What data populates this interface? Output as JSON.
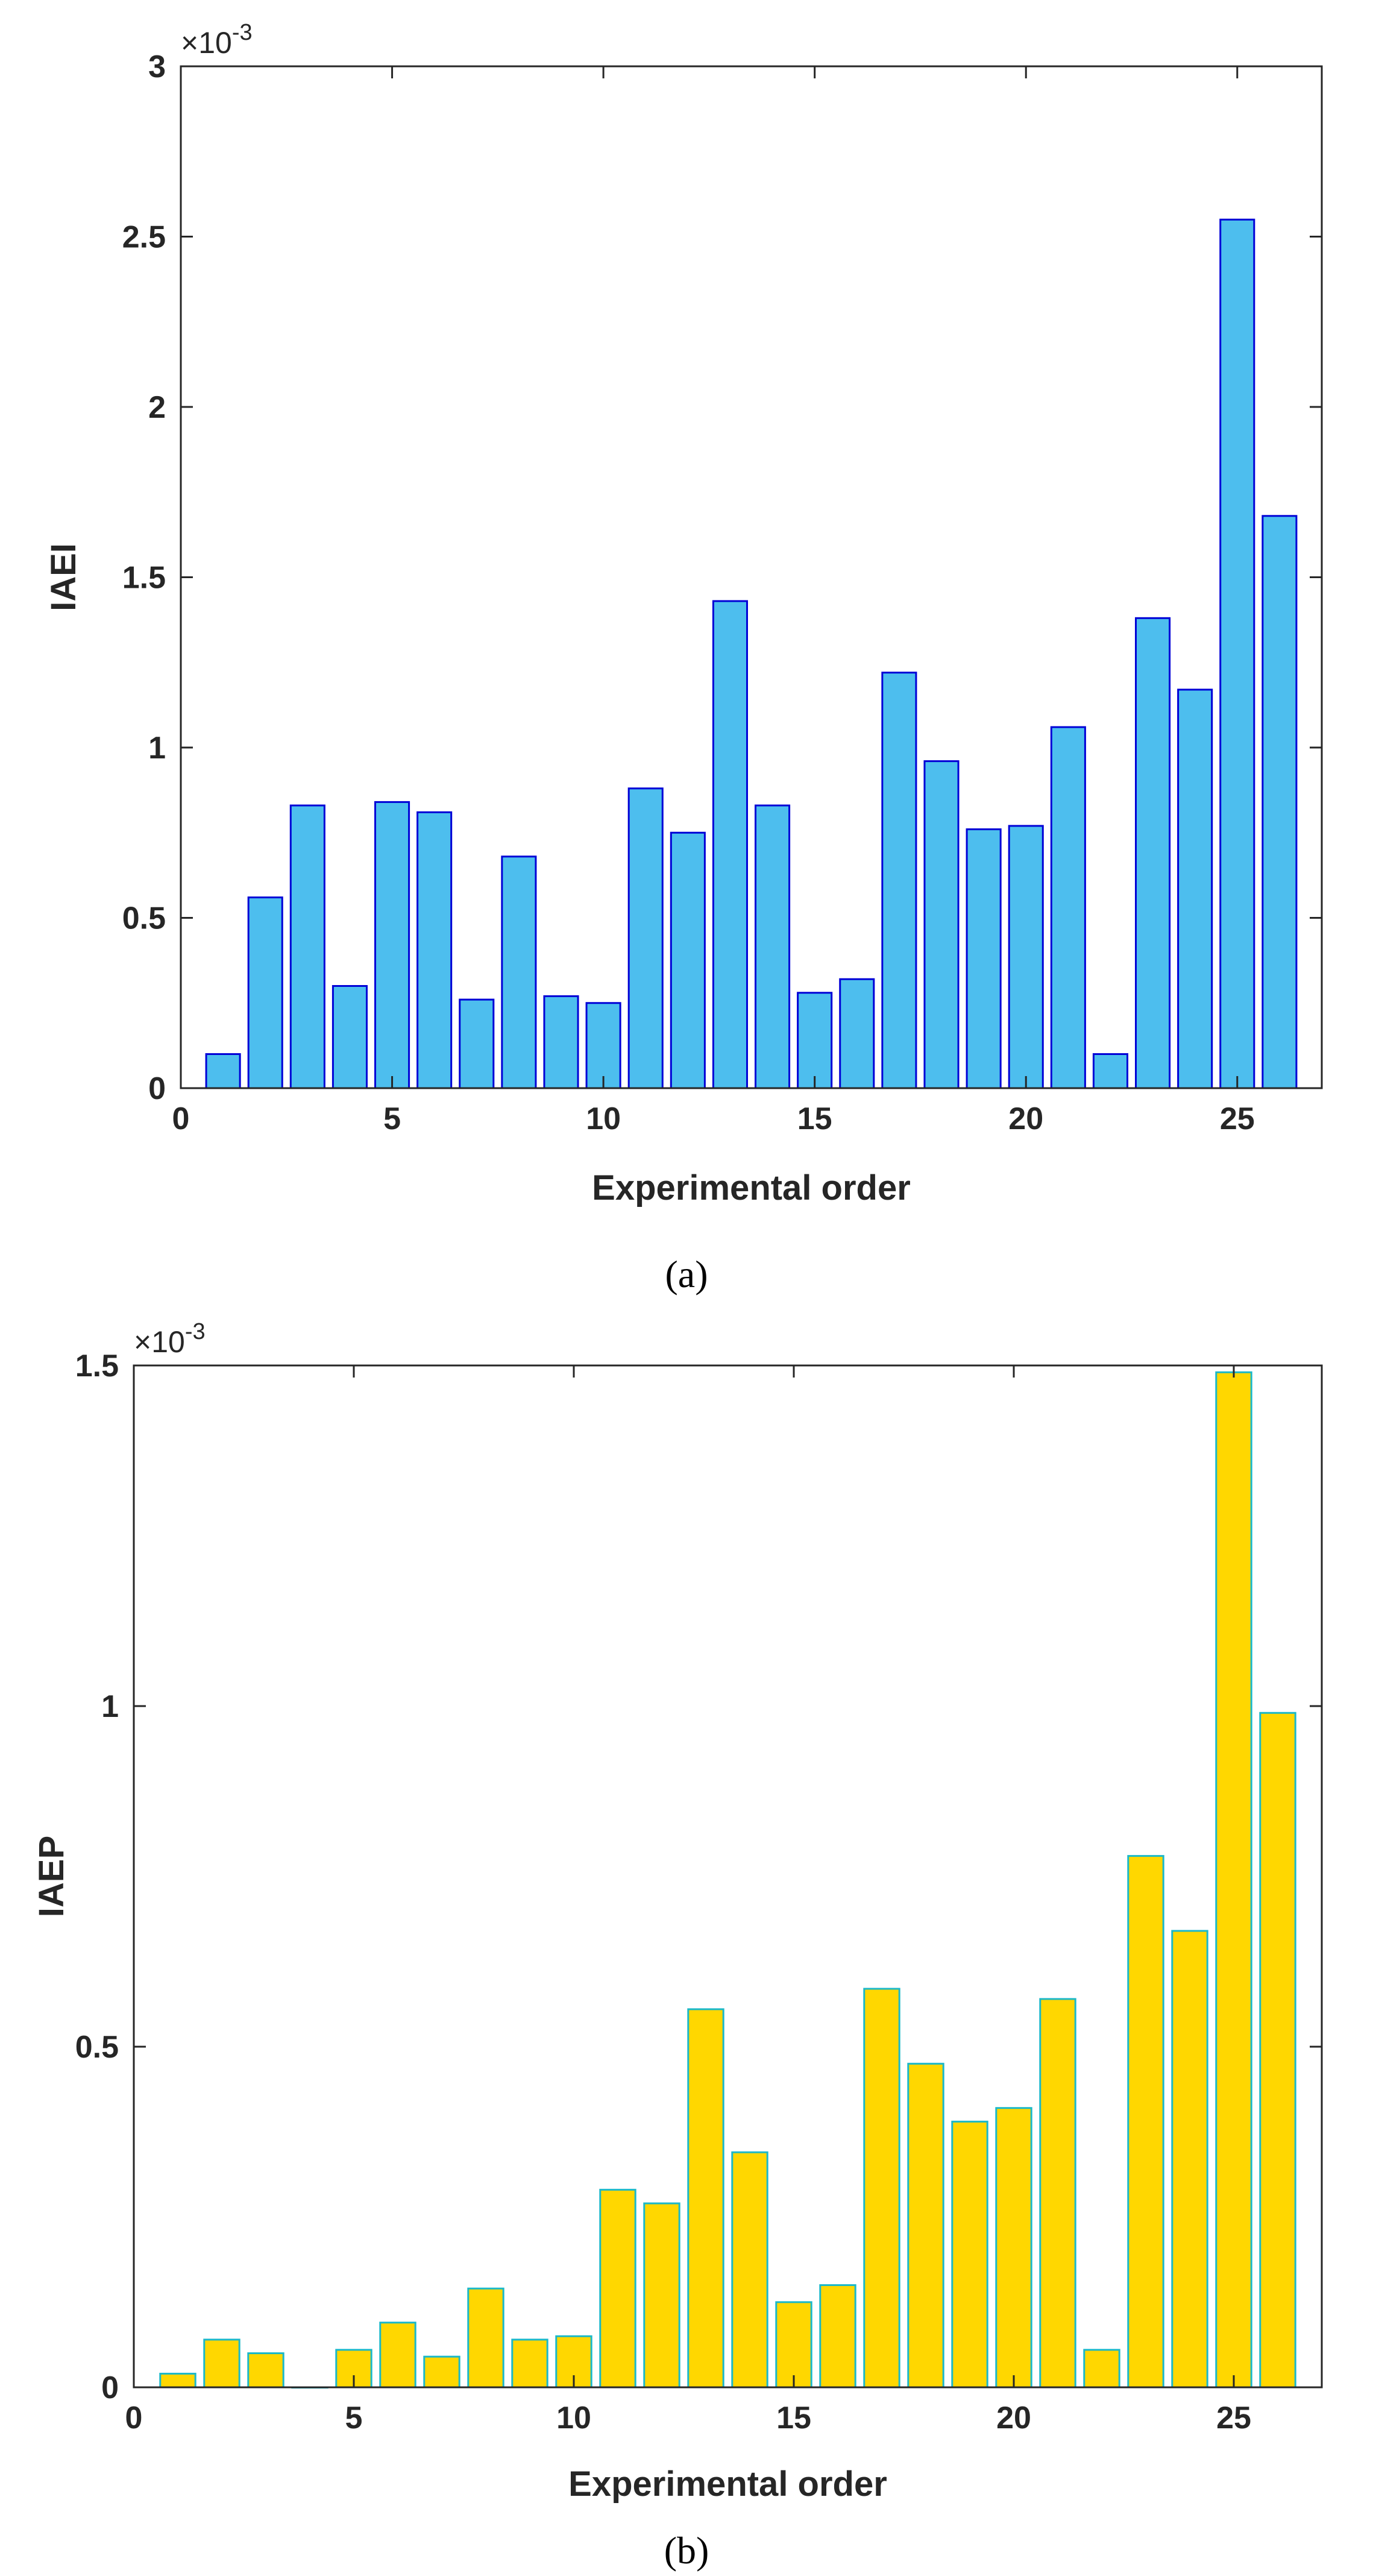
{
  "chart_data": [
    {
      "type": "bar",
      "panel_label": "(a)",
      "xlabel": "Experimental order",
      "ylabel": "IAEI",
      "exponent_label": "×10",
      "exponent_power": "-3",
      "xlim": [
        0,
        27
      ],
      "ylim": [
        0,
        3
      ],
      "xticks": [
        0,
        5,
        10,
        15,
        20,
        25
      ],
      "xtick_labels": [
        "0",
        "5",
        "10",
        "15",
        "20",
        "25"
      ],
      "yticks": [
        0,
        0.5,
        1,
        1.5,
        2,
        2.5,
        3
      ],
      "ytick_labels": [
        "0",
        "0.5",
        "1",
        "1.5",
        "2",
        "2.5",
        "3"
      ],
      "categories": [
        1,
        2,
        3,
        4,
        5,
        6,
        7,
        8,
        9,
        10,
        11,
        12,
        13,
        14,
        15,
        16,
        17,
        18,
        19,
        20,
        21,
        22,
        23,
        24,
        25,
        26
      ],
      "values": [
        0.1,
        0.56,
        0.83,
        0.3,
        0.84,
        0.81,
        0.26,
        0.68,
        0.27,
        0.25,
        0.88,
        0.75,
        1.43,
        0.83,
        0.28,
        0.32,
        1.22,
        0.96,
        0.76,
        0.77,
        1.06,
        0.1,
        1.38,
        1.17,
        2.55,
        1.68
      ],
      "fill_color": "#4DBEEE",
      "edge_color": "#0000D6"
    },
    {
      "type": "bar",
      "panel_label": "(b)",
      "xlabel": "Experimental order",
      "ylabel": "IAEP",
      "exponent_label": "×10",
      "exponent_power": "-3",
      "xlim": [
        0,
        27
      ],
      "ylim": [
        0,
        1.5
      ],
      "xticks": [
        0,
        5,
        10,
        15,
        20,
        25
      ],
      "xtick_labels": [
        "0",
        "5",
        "10",
        "15",
        "20",
        "25"
      ],
      "yticks": [
        0,
        0.5,
        1,
        1.5
      ],
      "ytick_labels": [
        "0",
        "0.5",
        "1",
        "1.5"
      ],
      "categories": [
        1,
        2,
        3,
        4,
        5,
        6,
        7,
        8,
        9,
        10,
        11,
        12,
        13,
        14,
        15,
        16,
        17,
        18,
        19,
        20,
        21,
        22,
        23,
        24,
        25,
        26
      ],
      "values": [
        0.02,
        0.07,
        0.05,
        0.0,
        0.055,
        0.095,
        0.045,
        0.145,
        0.07,
        0.075,
        0.29,
        0.27,
        0.555,
        0.345,
        0.125,
        0.15,
        0.585,
        0.475,
        0.39,
        0.41,
        0.57,
        0.055,
        0.78,
        0.67,
        1.49,
        0.99
      ],
      "fill_color": "#FFD700",
      "edge_color": "#1BB8C8"
    }
  ]
}
